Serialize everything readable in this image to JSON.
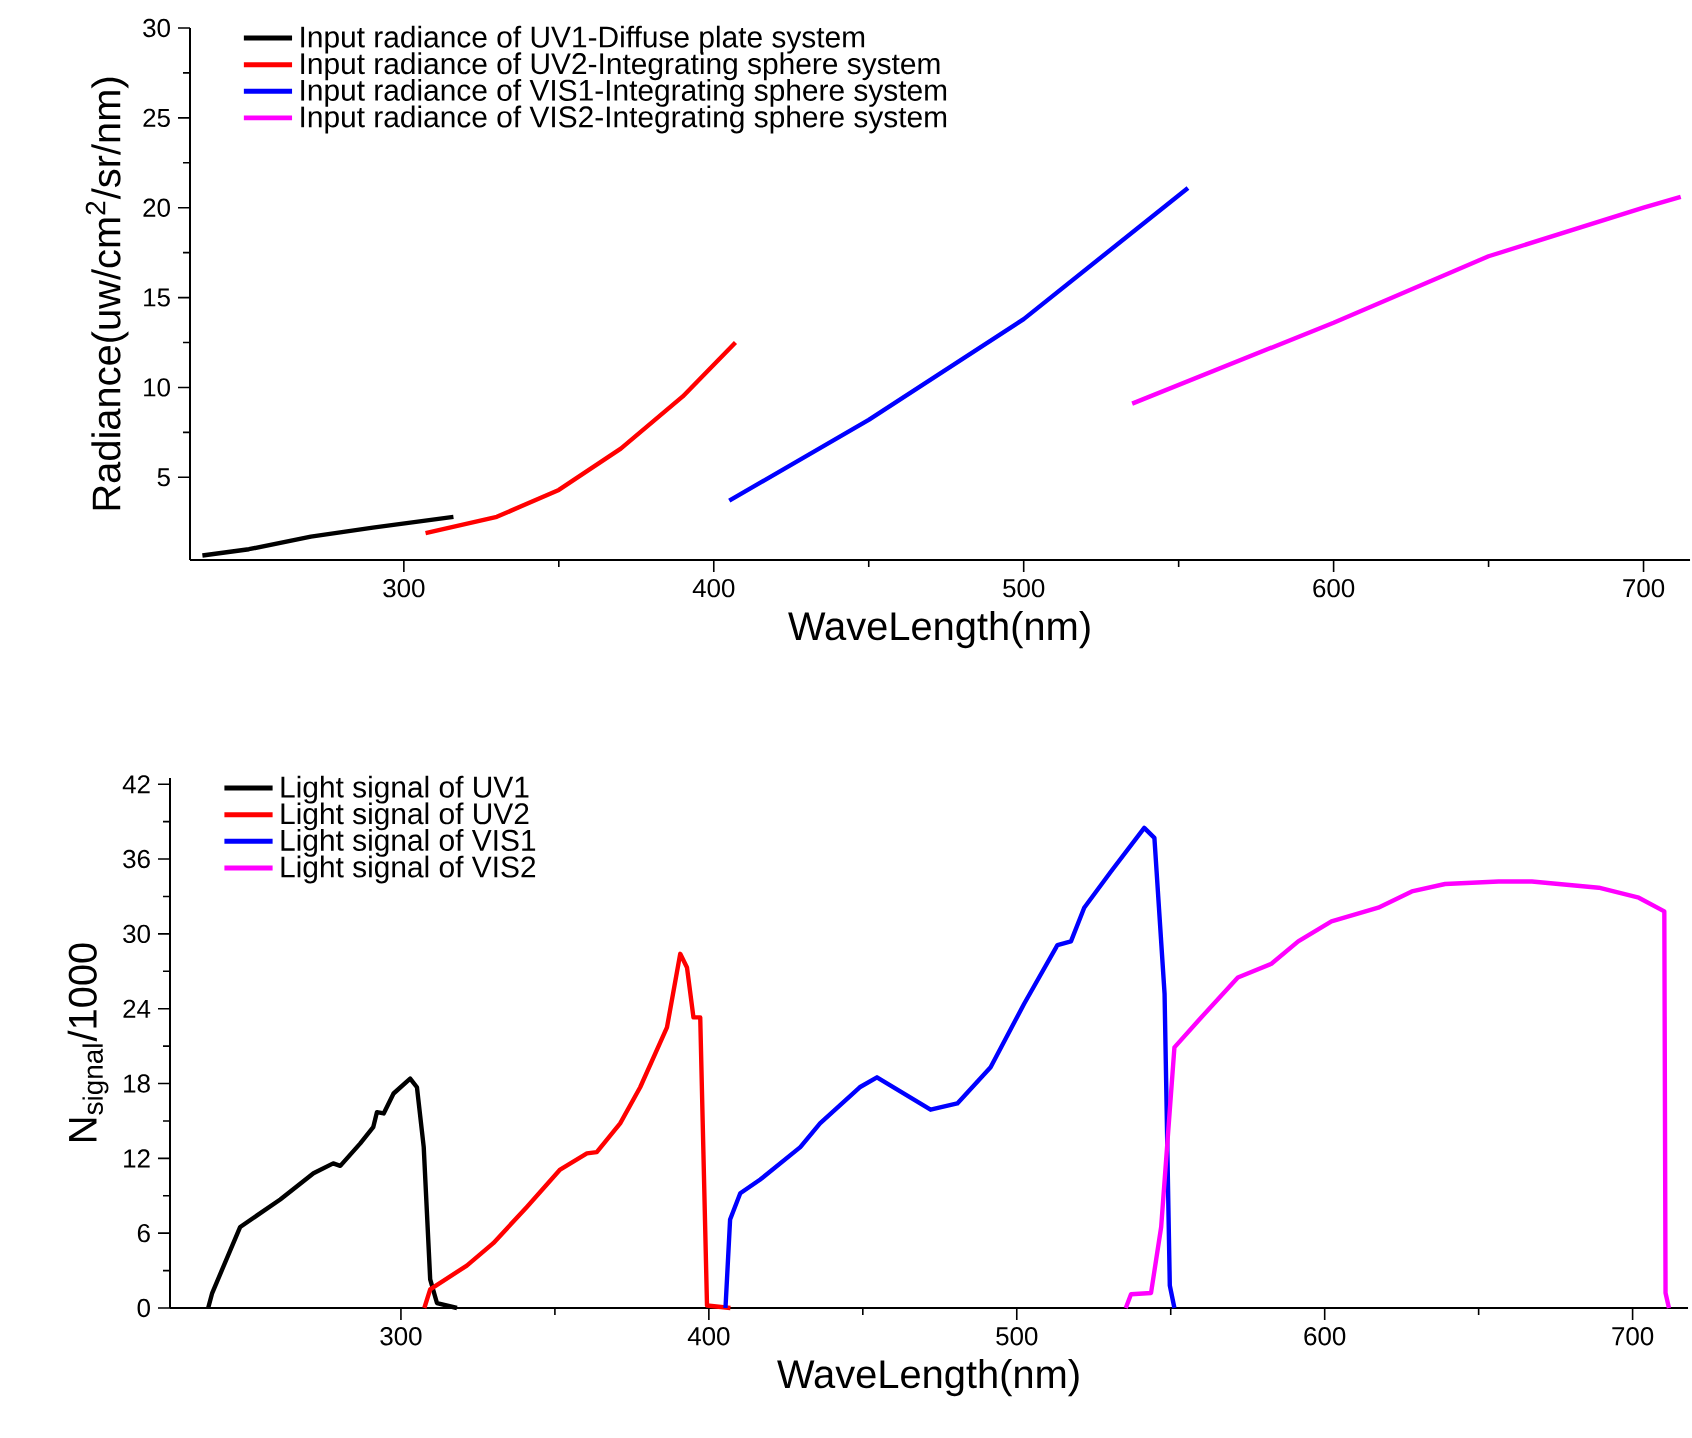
{
  "chart_data": [
    {
      "type": "line",
      "xlabel": "WaveLength(nm)",
      "ylabel": "Radiance(uw/cm$^{2}$/sr/nm)",
      "xlim": [
        231,
        715
      ],
      "ylim": [
        0.4,
        30
      ],
      "xticks": [
        300,
        400,
        500,
        600,
        700
      ],
      "yticks": [
        5,
        10,
        15,
        20,
        25,
        30
      ],
      "legend": "top left",
      "series": [
        {
          "name": "Input radiance of UV1-Diffuse plate system",
          "color": "#000000",
          "x": [
            235,
            250,
            270,
            290,
            316
          ],
          "values": [
            0.65,
            1.0,
            1.7,
            2.2,
            2.8
          ]
        },
        {
          "name": "Input radiance of UV2-Integrating sphere system",
          "color": "#ff0000",
          "x": [
            307,
            330,
            350,
            370,
            390,
            407
          ],
          "values": [
            1.9,
            2.8,
            4.3,
            6.6,
            9.5,
            12.5
          ]
        },
        {
          "name": "Input radiance of VIS1-Integrating sphere system",
          "color": "#0000ff",
          "x": [
            405,
            450,
            500,
            553
          ],
          "values": [
            3.7,
            8.2,
            13.8,
            21.1
          ]
        },
        {
          "name": "Input radiance of VIS2-Integrating sphere system",
          "color": "#ff00ff",
          "x": [
            535,
            600,
            650,
            700,
            712
          ],
          "values": [
            9.1,
            13.6,
            17.3,
            20.0,
            20.6
          ]
        }
      ]
    },
    {
      "type": "line",
      "xlabel": "WaveLength(nm)",
      "ylabel": "N$_{signal}$/1000",
      "xlim": [
        225,
        718
      ],
      "ylim": [
        0,
        42.5
      ],
      "xticks": [
        300,
        400,
        500,
        600,
        700
      ],
      "yticks": [
        0,
        6,
        12,
        18,
        24,
        30,
        36,
        42
      ],
      "legend": "top left",
      "series": [
        {
          "name": "Light signal of UV1",
          "color": "#000000",
          "x": [
            237.4,
            238.7,
            247.8,
            260.8,
            271.6,
            278,
            280.3,
            286.8,
            291,
            292.2,
            294.4,
            297.6,
            303,
            305.2,
            307.4,
            309.5,
            311.7,
            318.2
          ],
          "values": [
            0,
            1.2,
            6.5,
            8.7,
            10.8,
            11.6,
            11.4,
            13.2,
            14.5,
            15.7,
            15.6,
            17.2,
            18.4,
            17.7,
            12.9,
            2.3,
            0.4,
            0
          ]
        },
        {
          "name": "Light signal of UV2",
          "color": "#ff0000",
          "x": [
            307.6,
            309.5,
            321.4,
            330,
            340.9,
            351.7,
            360.4,
            363.6,
            371.2,
            377.7,
            386.4,
            390.7,
            392.9,
            395,
            397.2,
            399.4,
            407
          ],
          "values": [
            0,
            1.5,
            3.4,
            5.2,
            8.1,
            11.1,
            12.4,
            12.5,
            14.8,
            17.7,
            22.5,
            28.4,
            27.3,
            23.3,
            23.3,
            0.2,
            0
          ]
        },
        {
          "name": "Light signal of VIS1",
          "color": "#0000ff",
          "x": [
            405.4,
            406.9,
            410.2,
            416.7,
            429.7,
            436.1,
            449,
            454.6,
            472,
            480.7,
            491.5,
            502.4,
            513.2,
            517.6,
            521.9,
            530.6,
            541.4,
            544.7,
            548,
            549.7,
            551.2
          ],
          "values": [
            0,
            7.1,
            9.2,
            10.3,
            12.9,
            14.8,
            17.7,
            18.5,
            15.9,
            16.4,
            19.3,
            24.4,
            29.1,
            29.4,
            32.1,
            35,
            38.5,
            37.7,
            25.2,
            1.8,
            0
          ]
        },
        {
          "name": "Light signal of VIS2",
          "color": "#ff00ff",
          "x": [
            535.4,
            537.1,
            543.6,
            546.9,
            551.2,
            558.8,
            571.8,
            582.7,
            591.4,
            602.2,
            617.4,
            628.3,
            639.1,
            656.5,
            667.3,
            689,
            702,
            710.3,
            710.7,
            711.8
          ],
          "values": [
            0,
            1.1,
            1.2,
            6.5,
            20.9,
            23,
            26.5,
            27.6,
            29.4,
            31,
            32.1,
            33.4,
            34,
            34.2,
            34.2,
            33.7,
            32.9,
            31.8,
            1.2,
            0
          ]
        }
      ]
    }
  ]
}
